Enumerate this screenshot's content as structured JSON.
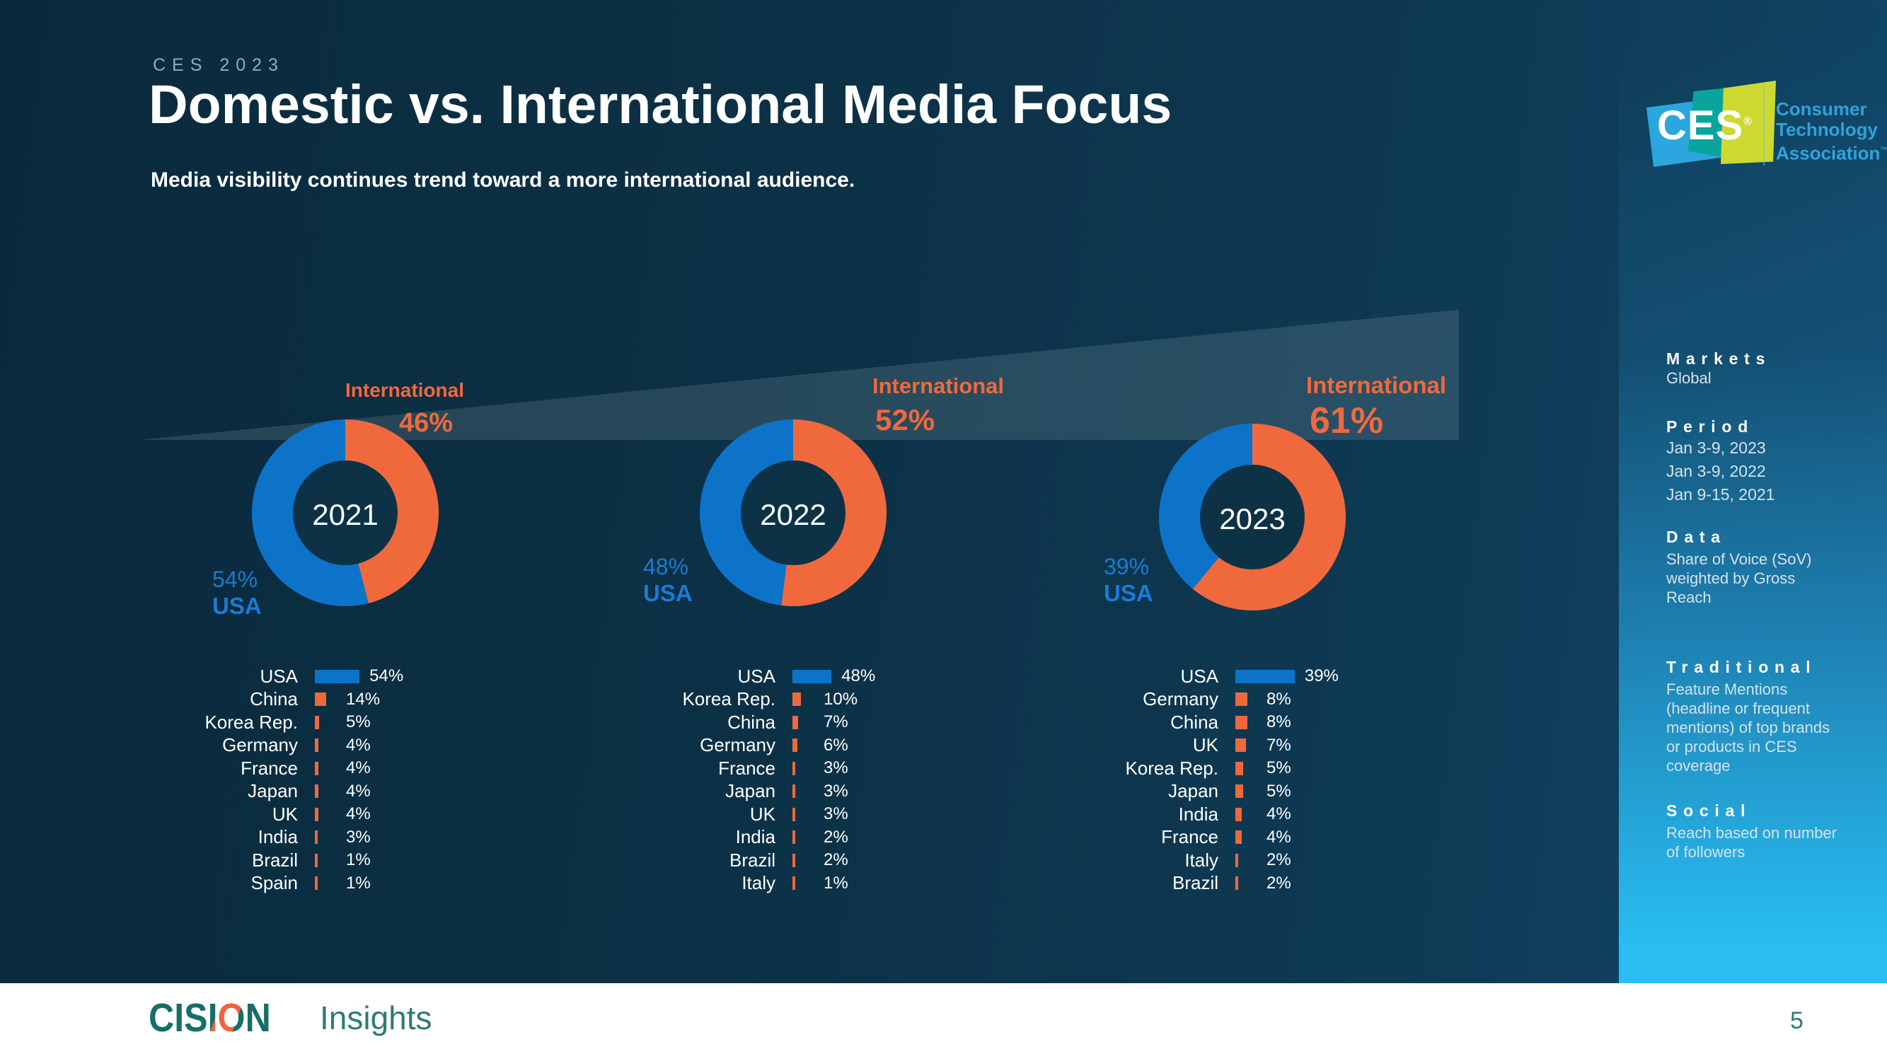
{
  "slide": {
    "kicker": "CES 2023",
    "title": "Domestic vs. International Media Focus",
    "subtitle": "Media visibility continues trend toward a more international audience.",
    "page_number": "5"
  },
  "logos": {
    "ces": {
      "text": "CES",
      "reg_mark": "®",
      "org_lines": [
        "Consumer",
        "Technology",
        "Association"
      ],
      "trademark": "™"
    },
    "cision": {
      "wordmark": "CISION",
      "reg_mark": "®",
      "suffix": "Insights"
    }
  },
  "sidebar": {
    "sections": [
      {
        "heading": "Markets",
        "lines": [
          "Global"
        ]
      },
      {
        "heading": "Period",
        "lines": [
          "Jan 3-9, 2023",
          "Jan 3-9, 2022",
          "Jan 9-15, 2021"
        ]
      },
      {
        "heading": "Data",
        "lines": [
          "Share of Voice (SoV)",
          "weighted by Gross",
          "Reach"
        ]
      },
      {
        "heading": "Traditional",
        "lines": [
          "Feature Mentions",
          "(headline or frequent",
          "mentions) of top brands",
          "or products in CES",
          "coverage"
        ]
      },
      {
        "heading": "Social",
        "lines": [
          "Reach based on number",
          "of followers"
        ]
      }
    ]
  },
  "colors": {
    "background": "#0d3246",
    "orange": "#f0693d",
    "blue": "#0d73c8",
    "blue_label": "#1a7bd3",
    "sidebar_bottom": "#29bdf2",
    "teal": "#2e7c70"
  },
  "chart_data": [
    {
      "type": "donut+bar",
      "year": "2021",
      "intl_label": "International",
      "intl_pct": 46,
      "usa_label": "USA",
      "usa_pct": 54,
      "countries": [
        {
          "name": "USA",
          "pct": 54
        },
        {
          "name": "China",
          "pct": 14
        },
        {
          "name": "Korea Rep.",
          "pct": 5
        },
        {
          "name": "Germany",
          "pct": 4
        },
        {
          "name": "France",
          "pct": 4
        },
        {
          "name": "Japan",
          "pct": 4
        },
        {
          "name": "UK",
          "pct": 4
        },
        {
          "name": "India",
          "pct": 3
        },
        {
          "name": "Brazil",
          "pct": 1
        },
        {
          "name": "Spain",
          "pct": 1
        }
      ]
    },
    {
      "type": "donut+bar",
      "year": "2022",
      "intl_label": "International",
      "intl_pct": 52,
      "usa_label": "USA",
      "usa_pct": 48,
      "countries": [
        {
          "name": "USA",
          "pct": 48
        },
        {
          "name": "Korea Rep.",
          "pct": 10
        },
        {
          "name": "China",
          "pct": 7
        },
        {
          "name": "Germany",
          "pct": 6
        },
        {
          "name": "France",
          "pct": 3
        },
        {
          "name": "Japan",
          "pct": 3
        },
        {
          "name": "UK",
          "pct": 3
        },
        {
          "name": "India",
          "pct": 2
        },
        {
          "name": "Brazil",
          "pct": 2
        },
        {
          "name": "Italy",
          "pct": 1
        }
      ]
    },
    {
      "type": "donut+bar",
      "year": "2023",
      "intl_label": "International",
      "intl_pct": 61,
      "usa_label": "USA",
      "usa_pct": 39,
      "countries": [
        {
          "name": "USA",
          "pct": 39
        },
        {
          "name": "Germany",
          "pct": 8
        },
        {
          "name": "China",
          "pct": 8
        },
        {
          "name": "UK",
          "pct": 7
        },
        {
          "name": "Korea Rep.",
          "pct": 5
        },
        {
          "name": "Japan",
          "pct": 5
        },
        {
          "name": "India",
          "pct": 4
        },
        {
          "name": "France",
          "pct": 4
        },
        {
          "name": "Italy",
          "pct": 2
        },
        {
          "name": "Brazil",
          "pct": 2
        }
      ]
    }
  ]
}
